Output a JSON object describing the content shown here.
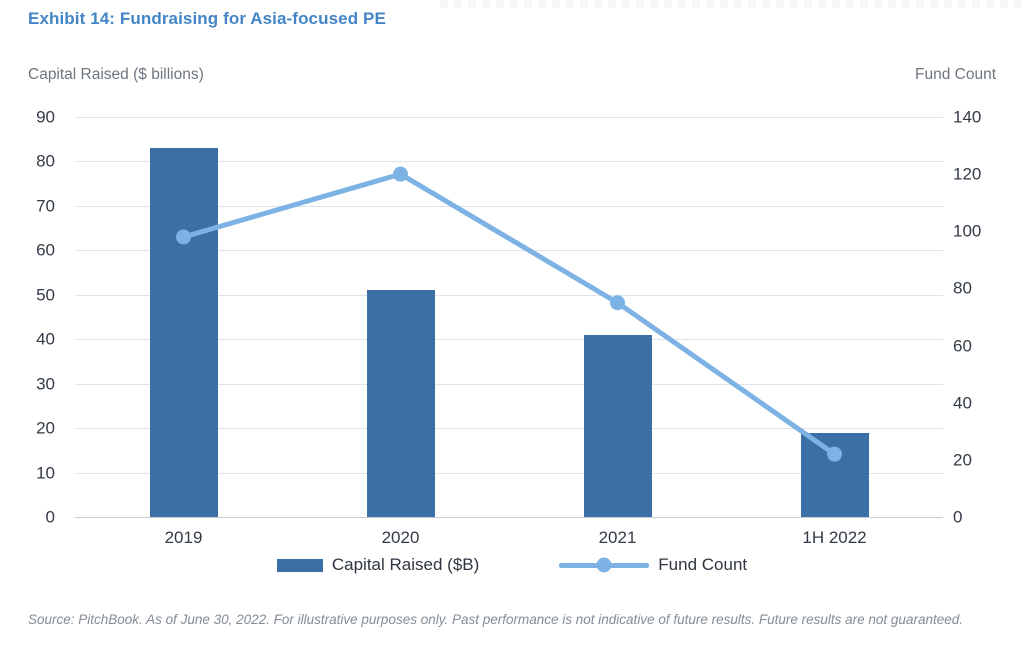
{
  "page": {
    "title": "Exhibit 14: Fundraising for Asia-focused PE",
    "title_color": "#4385c6",
    "source_note": "Source: PitchBook. As of June 30, 2022. For illustrative purposes only. Past performance is not indicative of future results. Future results are not guaranteed."
  },
  "chart_data": {
    "type": "bar",
    "subtype": "bar+line dual-axis combo",
    "categories": [
      "2019",
      "2020",
      "2021",
      "1H 2022"
    ],
    "series": [
      {
        "name": "Capital Raised ($B)",
        "type": "bar",
        "axis": "left",
        "color": "#3c6fa5",
        "values": [
          83,
          51,
          41,
          19
        ]
      },
      {
        "name": "Fund Count",
        "type": "line",
        "axis": "right",
        "color": "#7db2e4",
        "values": [
          98,
          120,
          75,
          22
        ]
      }
    ],
    "left_axis": {
      "label": "Capital Raised ($ billions)",
      "min": 0,
      "max": 90,
      "step": 10
    },
    "right_axis": {
      "label": "Fund Count",
      "min": 0,
      "max": 140,
      "step": 20
    },
    "grid": true,
    "legend_position": "bottom",
    "title": "Exhibit 14: Fundraising for Asia-focused PE"
  }
}
